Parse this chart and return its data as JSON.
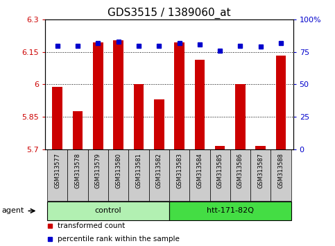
{
  "title": "GDS3515 / 1389060_at",
  "samples": [
    "GSM313577",
    "GSM313578",
    "GSM313579",
    "GSM313580",
    "GSM313581",
    "GSM313582",
    "GSM313583",
    "GSM313584",
    "GSM313585",
    "GSM313586",
    "GSM313587",
    "GSM313588"
  ],
  "red_values": [
    5.99,
    5.875,
    6.195,
    6.205,
    6.0,
    5.93,
    6.195,
    6.115,
    5.715,
    6.0,
    5.715,
    6.135
  ],
  "blue_values": [
    80,
    80,
    82,
    83,
    80,
    80,
    82,
    81,
    76,
    80,
    79,
    82
  ],
  "ylim_left": [
    5.7,
    6.3
  ],
  "ylim_right": [
    0,
    100
  ],
  "yticks_left": [
    5.7,
    5.85,
    6.0,
    6.15,
    6.3
  ],
  "yticks_right": [
    0,
    25,
    50,
    75,
    100
  ],
  "ytick_labels_left": [
    "5.7",
    "5.85",
    "6",
    "6.15",
    "6.3"
  ],
  "ytick_labels_right": [
    "0",
    "25",
    "50",
    "75",
    "100%"
  ],
  "groups": [
    {
      "label": "control",
      "start": 0,
      "end": 5,
      "color": "#b2f0b2"
    },
    {
      "label": "htt-171-82Q",
      "start": 6,
      "end": 11,
      "color": "#44dd44"
    }
  ],
  "agent_label": "agent",
  "legend_items": [
    {
      "label": "transformed count",
      "color": "#cc0000"
    },
    {
      "label": "percentile rank within the sample",
      "color": "#0000cc"
    }
  ],
  "bar_color": "#cc0000",
  "dot_color": "#0000cc",
  "sample_box_color": "#cccccc",
  "bar_width": 0.5,
  "title_fontsize": 11,
  "tick_fontsize": 8,
  "sample_fontsize": 6,
  "legend_fontsize": 7.5
}
